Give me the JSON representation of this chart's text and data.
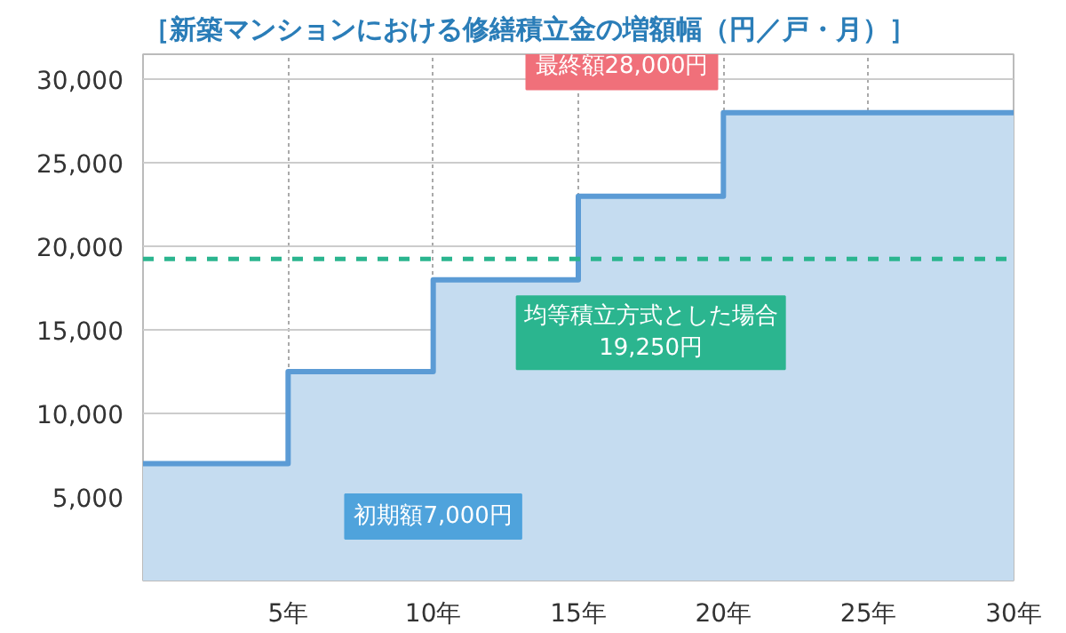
{
  "chart_data": {
    "type": "area",
    "title": "［新築マンションにおける修繕積立金の増額幅（円／戸・月）］",
    "x": [
      0,
      5,
      5,
      10,
      10,
      15,
      15,
      20,
      20,
      30
    ],
    "series": [
      {
        "color": "#5b9bd5",
        "values": [
          7000,
          7000,
          12500,
          12500,
          18000,
          18000,
          23000,
          23000,
          28000,
          28000
        ]
      }
    ],
    "xlim": [
      0,
      30
    ],
    "ylim": [
      0,
      31500
    ],
    "xticks": [
      {
        "value": 5,
        "label": "5年"
      },
      {
        "value": 10,
        "label": "10年"
      },
      {
        "value": 15,
        "label": "15年"
      },
      {
        "value": 20,
        "label": "20年"
      },
      {
        "value": 25,
        "label": "25年"
      },
      {
        "value": 30,
        "label": "30年"
      }
    ],
    "yticks": [
      {
        "value": 5000,
        "label": "5,000"
      },
      {
        "value": 10000,
        "label": "10,000"
      },
      {
        "value": 15000,
        "label": "15,000"
      },
      {
        "value": 20000,
        "label": "20,000"
      },
      {
        "value": 25000,
        "label": "25,000"
      },
      {
        "value": 30000,
        "label": "30,000"
      }
    ],
    "grid": true,
    "ref_lines": [
      {
        "axis": "y",
        "value": 19250,
        "label": "均等積立方式とした場合\n19,250円",
        "color": "#2bb58f",
        "line_style": "dashed"
      }
    ],
    "annotations": [
      "初期額7,000円",
      "最終額28,000円"
    ]
  }
}
